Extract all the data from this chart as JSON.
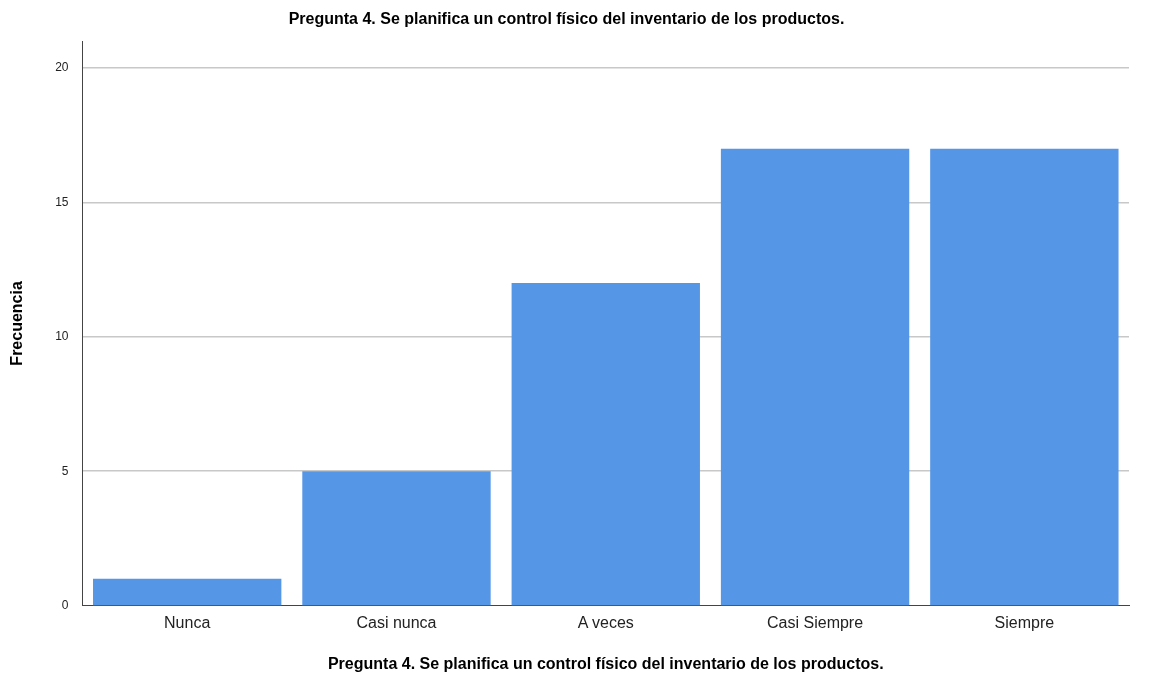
{
  "chart_data": {
    "type": "bar",
    "title": "Pregunta 4. Se planifica un control físico del inventario de los productos.",
    "xlabel": "Pregunta 4. Se planifica un control físico del inventario de los productos.",
    "ylabel": "Frecuencia",
    "categories": [
      "Nunca",
      "Casi nunca",
      "A veces",
      "Casi Siempre",
      "Siempre"
    ],
    "values": [
      1,
      5,
      12,
      17,
      17
    ],
    "color": "#5596e6",
    "ylim": [
      0,
      21
    ],
    "yticks": [
      0,
      5,
      10,
      15,
      20
    ],
    "grid": "y",
    "legend": false
  }
}
